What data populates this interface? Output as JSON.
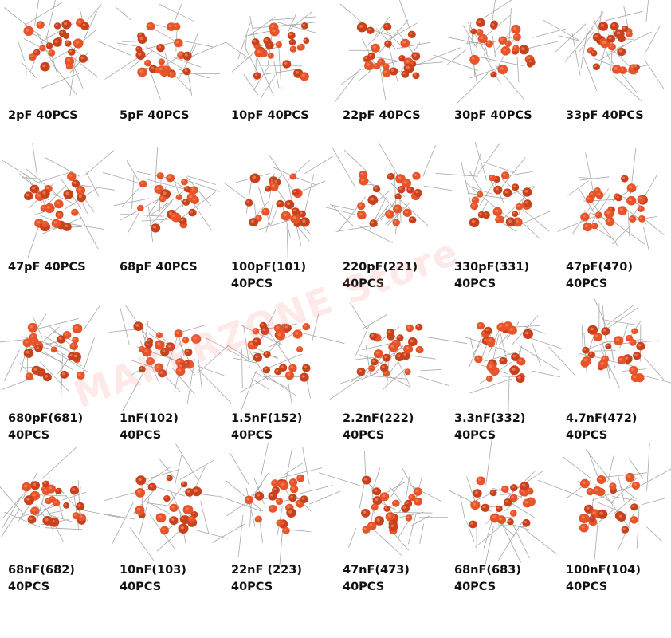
{
  "watermark": "MAKERZONE Store",
  "items": [
    {
      "label": "2pF  40PCS"
    },
    {
      "label": "5pF  40PCS"
    },
    {
      "label": "10pF  40PCS"
    },
    {
      "label": "22pF  40PCS"
    },
    {
      "label": "30pF  40PCS"
    },
    {
      "label": "33pF  40PCS"
    },
    {
      "label": "47pF  40PCS"
    },
    {
      "label": "68pF  40PCS"
    },
    {
      "label": "100pF(101)\n40PCS"
    },
    {
      "label": "220pF(221)\n40PCS"
    },
    {
      "label": "330pF(331)\n40PCS"
    },
    {
      "label": "47pF(470)\n40PCS"
    },
    {
      "label": "680pF(681)\n40PCS"
    },
    {
      "label": "1nF(102)\n40PCS"
    },
    {
      "label": "1.5nF(152)\n40PCS"
    },
    {
      "label": "2.2nF(222)\n40PCS"
    },
    {
      "label": "3.3nF(332)\n40PCS"
    },
    {
      "label": "4.7nF(472)\n40PCS"
    },
    {
      "label": "68nF(682)\n40PCS"
    },
    {
      "label": "10nF(103)\n40PCS"
    },
    {
      "label": "22nF (223)\n40PCS"
    },
    {
      "label": "47nF(473)\n40PCS"
    },
    {
      "label": "68nF(683)\n40PCS"
    },
    {
      "label": "100nF(104)\n40PCS"
    }
  ],
  "colors": {
    "capacitor": "#e8542a",
    "capacitor_dark": "#c8411d",
    "lead": "#a8a8a8"
  }
}
